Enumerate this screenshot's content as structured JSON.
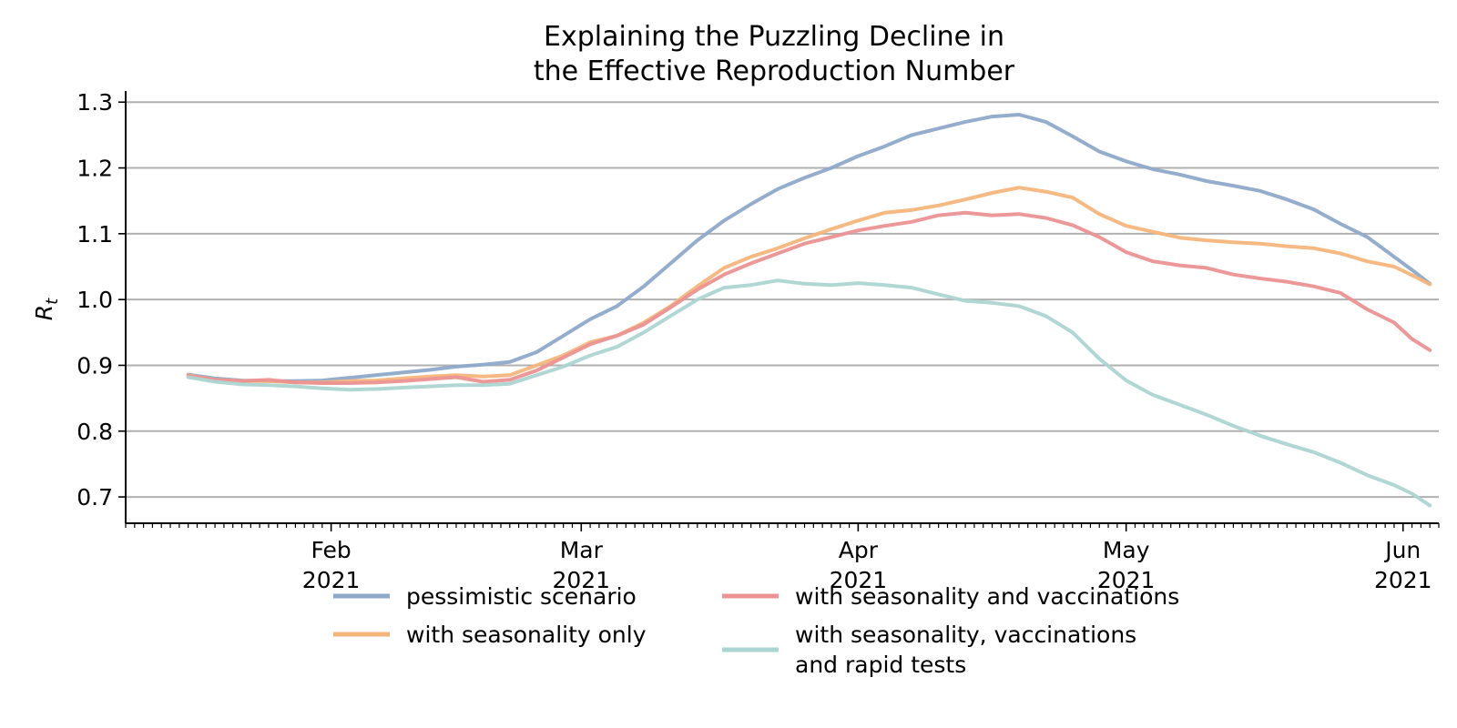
{
  "chart_data": {
    "type": "line",
    "title_lines": [
      "Explaining the Puzzling Decline in",
      "the Effective Reproduction Number"
    ],
    "xlabel": "",
    "ylabel": "R_t",
    "ylim": [
      0.66,
      1.31
    ],
    "y_ticks": [
      0.7,
      0.8,
      0.9,
      1.0,
      1.1,
      1.2,
      1.3
    ],
    "y_tick_labels": [
      "0.7",
      "0.8",
      "0.9",
      "1.0",
      "1.1",
      "1.2",
      "1.3"
    ],
    "xlim": [
      "2021-01-09",
      "2021-06-05"
    ],
    "x_ticks": [
      {
        "date": "2021-02-01",
        "month": "Feb",
        "year": "2021"
      },
      {
        "date": "2021-03-01",
        "month": "Mar",
        "year": "2021"
      },
      {
        "date": "2021-04-01",
        "month": "Apr",
        "year": "2021"
      },
      {
        "date": "2021-05-01",
        "month": "May",
        "year": "2021"
      },
      {
        "date": "2021-06-01",
        "month": "Jun",
        "year": "2021"
      }
    ],
    "grid": "y",
    "legend_position": "bottom-center",
    "series": [
      {
        "name": "pessimistic scenario",
        "color": "#8ea9ca",
        "points": [
          [
            "2021-01-16",
            0.886
          ],
          [
            "2021-01-19",
            0.88
          ],
          [
            "2021-01-22",
            0.877
          ],
          [
            "2021-01-25",
            0.876
          ],
          [
            "2021-01-28",
            0.876
          ],
          [
            "2021-01-31",
            0.877
          ],
          [
            "2021-02-03",
            0.881
          ],
          [
            "2021-02-06",
            0.885
          ],
          [
            "2021-02-09",
            0.889
          ],
          [
            "2021-02-12",
            0.893
          ],
          [
            "2021-02-15",
            0.898
          ],
          [
            "2021-02-18",
            0.901
          ],
          [
            "2021-02-21",
            0.905
          ],
          [
            "2021-02-24",
            0.92
          ],
          [
            "2021-02-27",
            0.945
          ],
          [
            "2021-03-02",
            0.97
          ],
          [
            "2021-03-05",
            0.99
          ],
          [
            "2021-03-08",
            1.02
          ],
          [
            "2021-03-11",
            1.055
          ],
          [
            "2021-03-14",
            1.09
          ],
          [
            "2021-03-17",
            1.12
          ],
          [
            "2021-03-20",
            1.145
          ],
          [
            "2021-03-23",
            1.168
          ],
          [
            "2021-03-26",
            1.185
          ],
          [
            "2021-03-29",
            1.2
          ],
          [
            "2021-04-01",
            1.218
          ],
          [
            "2021-04-04",
            1.233
          ],
          [
            "2021-04-07",
            1.25
          ],
          [
            "2021-04-10",
            1.26
          ],
          [
            "2021-04-13",
            1.27
          ],
          [
            "2021-04-16",
            1.278
          ],
          [
            "2021-04-19",
            1.281
          ],
          [
            "2021-04-22",
            1.27
          ],
          [
            "2021-04-25",
            1.248
          ],
          [
            "2021-04-28",
            1.225
          ],
          [
            "2021-05-01",
            1.21
          ],
          [
            "2021-05-04",
            1.198
          ],
          [
            "2021-05-07",
            1.19
          ],
          [
            "2021-05-10",
            1.18
          ],
          [
            "2021-05-13",
            1.173
          ],
          [
            "2021-05-16",
            1.165
          ],
          [
            "2021-05-19",
            1.152
          ],
          [
            "2021-05-22",
            1.137
          ],
          [
            "2021-05-25",
            1.115
          ],
          [
            "2021-05-28",
            1.095
          ],
          [
            "2021-05-31",
            1.065
          ],
          [
            "2021-06-02",
            1.045
          ],
          [
            "2021-06-04",
            1.024
          ]
        ]
      },
      {
        "name": "with seasonality only",
        "color": "#f4b57a",
        "points": [
          [
            "2021-01-16",
            0.885
          ],
          [
            "2021-01-19",
            0.878
          ],
          [
            "2021-01-22",
            0.876
          ],
          [
            "2021-01-25",
            0.876
          ],
          [
            "2021-01-28",
            0.874
          ],
          [
            "2021-01-31",
            0.874
          ],
          [
            "2021-02-03",
            0.876
          ],
          [
            "2021-02-06",
            0.877
          ],
          [
            "2021-02-09",
            0.88
          ],
          [
            "2021-02-12",
            0.883
          ],
          [
            "2021-02-15",
            0.885
          ],
          [
            "2021-02-18",
            0.883
          ],
          [
            "2021-02-21",
            0.885
          ],
          [
            "2021-02-24",
            0.9
          ],
          [
            "2021-02-27",
            0.915
          ],
          [
            "2021-03-02",
            0.935
          ],
          [
            "2021-03-05",
            0.945
          ],
          [
            "2021-03-08",
            0.965
          ],
          [
            "2021-03-11",
            0.99
          ],
          [
            "2021-03-14",
            1.02
          ],
          [
            "2021-03-17",
            1.048
          ],
          [
            "2021-03-20",
            1.065
          ],
          [
            "2021-03-23",
            1.078
          ],
          [
            "2021-03-26",
            1.093
          ],
          [
            "2021-03-29",
            1.107
          ],
          [
            "2021-04-01",
            1.12
          ],
          [
            "2021-04-04",
            1.132
          ],
          [
            "2021-04-07",
            1.136
          ],
          [
            "2021-04-10",
            1.143
          ],
          [
            "2021-04-13",
            1.152
          ],
          [
            "2021-04-16",
            1.162
          ],
          [
            "2021-04-19",
            1.17
          ],
          [
            "2021-04-22",
            1.164
          ],
          [
            "2021-04-25",
            1.155
          ],
          [
            "2021-04-28",
            1.13
          ],
          [
            "2021-05-01",
            1.112
          ],
          [
            "2021-05-04",
            1.103
          ],
          [
            "2021-05-07",
            1.094
          ],
          [
            "2021-05-10",
            1.09
          ],
          [
            "2021-05-13",
            1.087
          ],
          [
            "2021-05-16",
            1.085
          ],
          [
            "2021-05-19",
            1.081
          ],
          [
            "2021-05-22",
            1.078
          ],
          [
            "2021-05-25",
            1.07
          ],
          [
            "2021-05-28",
            1.058
          ],
          [
            "2021-05-31",
            1.05
          ],
          [
            "2021-06-02",
            1.037
          ],
          [
            "2021-06-04",
            1.023
          ]
        ]
      },
      {
        "name": "with seasonality and vaccinations",
        "color": "#ec9292",
        "points": [
          [
            "2021-01-16",
            0.884
          ],
          [
            "2021-01-19",
            0.878
          ],
          [
            "2021-01-22",
            0.876
          ],
          [
            "2021-01-25",
            0.878
          ],
          [
            "2021-01-28",
            0.874
          ],
          [
            "2021-01-31",
            0.873
          ],
          [
            "2021-02-03",
            0.873
          ],
          [
            "2021-02-06",
            0.874
          ],
          [
            "2021-02-09",
            0.876
          ],
          [
            "2021-02-12",
            0.879
          ],
          [
            "2021-02-15",
            0.882
          ],
          [
            "2021-02-18",
            0.875
          ],
          [
            "2021-02-21",
            0.878
          ],
          [
            "2021-02-24",
            0.892
          ],
          [
            "2021-02-27",
            0.912
          ],
          [
            "2021-03-02",
            0.932
          ],
          [
            "2021-03-05",
            0.945
          ],
          [
            "2021-03-08",
            0.962
          ],
          [
            "2021-03-11",
            0.988
          ],
          [
            "2021-03-14",
            1.015
          ],
          [
            "2021-03-17",
            1.038
          ],
          [
            "2021-03-20",
            1.055
          ],
          [
            "2021-03-23",
            1.07
          ],
          [
            "2021-03-26",
            1.085
          ],
          [
            "2021-03-29",
            1.095
          ],
          [
            "2021-04-01",
            1.105
          ],
          [
            "2021-04-04",
            1.112
          ],
          [
            "2021-04-07",
            1.118
          ],
          [
            "2021-04-10",
            1.128
          ],
          [
            "2021-04-13",
            1.132
          ],
          [
            "2021-04-16",
            1.128
          ],
          [
            "2021-04-19",
            1.13
          ],
          [
            "2021-04-22",
            1.124
          ],
          [
            "2021-04-25",
            1.113
          ],
          [
            "2021-04-28",
            1.095
          ],
          [
            "2021-05-01",
            1.072
          ],
          [
            "2021-05-04",
            1.058
          ],
          [
            "2021-05-07",
            1.052
          ],
          [
            "2021-05-10",
            1.048
          ],
          [
            "2021-05-13",
            1.038
          ],
          [
            "2021-05-16",
            1.032
          ],
          [
            "2021-05-19",
            1.027
          ],
          [
            "2021-05-22",
            1.02
          ],
          [
            "2021-05-25",
            1.01
          ],
          [
            "2021-05-28",
            0.985
          ],
          [
            "2021-05-31",
            0.965
          ],
          [
            "2021-06-02",
            0.94
          ],
          [
            "2021-06-04",
            0.923
          ]
        ]
      },
      {
        "name": "with seasonality, vaccinations\nand rapid tests",
        "color": "#acd5d2",
        "points": [
          [
            "2021-01-16",
            0.882
          ],
          [
            "2021-01-19",
            0.875
          ],
          [
            "2021-01-22",
            0.871
          ],
          [
            "2021-01-25",
            0.87
          ],
          [
            "2021-01-28",
            0.868
          ],
          [
            "2021-01-31",
            0.865
          ],
          [
            "2021-02-03",
            0.863
          ],
          [
            "2021-02-06",
            0.864
          ],
          [
            "2021-02-09",
            0.866
          ],
          [
            "2021-02-12",
            0.868
          ],
          [
            "2021-02-15",
            0.87
          ],
          [
            "2021-02-18",
            0.87
          ],
          [
            "2021-02-21",
            0.872
          ],
          [
            "2021-02-24",
            0.885
          ],
          [
            "2021-02-27",
            0.898
          ],
          [
            "2021-03-02",
            0.915
          ],
          [
            "2021-03-05",
            0.928
          ],
          [
            "2021-03-08",
            0.95
          ],
          [
            "2021-03-11",
            0.975
          ],
          [
            "2021-03-14",
            1.0
          ],
          [
            "2021-03-17",
            1.018
          ],
          [
            "2021-03-20",
            1.022
          ],
          [
            "2021-03-23",
            1.029
          ],
          [
            "2021-03-26",
            1.024
          ],
          [
            "2021-03-29",
            1.022
          ],
          [
            "2021-04-01",
            1.025
          ],
          [
            "2021-04-04",
            1.022
          ],
          [
            "2021-04-07",
            1.018
          ],
          [
            "2021-04-10",
            1.008
          ],
          [
            "2021-04-13",
            0.998
          ],
          [
            "2021-04-16",
            0.995
          ],
          [
            "2021-04-19",
            0.99
          ],
          [
            "2021-04-22",
            0.975
          ],
          [
            "2021-04-25",
            0.95
          ],
          [
            "2021-04-28",
            0.91
          ],
          [
            "2021-05-01",
            0.877
          ],
          [
            "2021-05-04",
            0.855
          ],
          [
            "2021-05-07",
            0.84
          ],
          [
            "2021-05-10",
            0.825
          ],
          [
            "2021-05-13",
            0.808
          ],
          [
            "2021-05-16",
            0.793
          ],
          [
            "2021-05-19",
            0.78
          ],
          [
            "2021-05-22",
            0.768
          ],
          [
            "2021-05-25",
            0.752
          ],
          [
            "2021-05-28",
            0.733
          ],
          [
            "2021-05-31",
            0.718
          ],
          [
            "2021-06-02",
            0.705
          ],
          [
            "2021-06-04",
            0.687
          ]
        ]
      }
    ]
  }
}
